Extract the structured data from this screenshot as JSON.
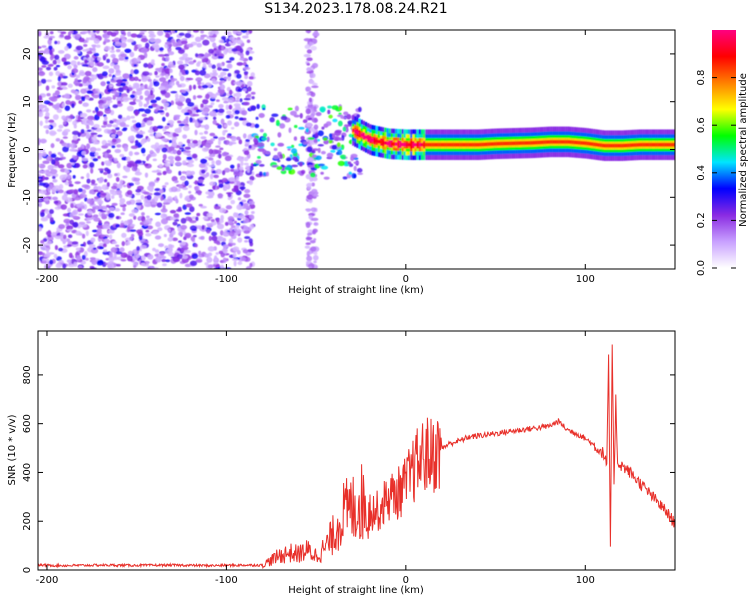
{
  "title": "S134.2023.178.08.24.R21",
  "chart_data": [
    {
      "type": "heatmap",
      "xlabel": "Height of straight line (km)",
      "ylabel": "Frequency (Hz)",
      "xlim": [
        -205,
        150
      ],
      "ylim": [
        -25,
        25
      ],
      "xticks": [
        -200,
        -100,
        0,
        100
      ],
      "yticks": [
        -20,
        -10,
        0,
        10,
        20
      ],
      "colorbar": {
        "label": "Normalized spectral amplitude",
        "range": [
          0,
          1
        ],
        "ticks": [
          0.0,
          0.2,
          0.4,
          0.6,
          0.8
        ],
        "colors": [
          "#ffffff",
          "#c8a0ff",
          "#8a2be2",
          "#0000ff",
          "#00e5ff",
          "#00ff00",
          "#ffff00",
          "#ff8000",
          "#ff0000",
          "#ff0080"
        ]
      },
      "regions": [
        {
          "x": [
            -205,
            -85
          ],
          "freq": [
            -25,
            25
          ],
          "amplitude": 0.15,
          "pattern": "scattered noise"
        },
        {
          "x": [
            -55,
            -50
          ],
          "freq": [
            -25,
            25
          ],
          "amplitude": 0.1,
          "pattern": "vertical streak"
        },
        {
          "x": [
            -85,
            -25
          ],
          "freq": [
            -6,
            9
          ],
          "amplitude": 0.3,
          "pattern": "blobs"
        },
        {
          "x": [
            -25,
            150
          ],
          "freq": [
            -1,
            3
          ],
          "amplitude": 0.85,
          "pattern": "signal band near 1 Hz"
        }
      ],
      "signal_band": {
        "x": [
          -30,
          -20,
          -10,
          0,
          10,
          20,
          30,
          40,
          50,
          60,
          70,
          80,
          90,
          100,
          110,
          120,
          130,
          140,
          150
        ],
        "freq": [
          4,
          2,
          1.2,
          1,
          1,
          1,
          1,
          1,
          1.2,
          1.3,
          1.4,
          1.6,
          1.6,
          1.3,
          0.8,
          0.8,
          1,
          1,
          1
        ]
      }
    },
    {
      "type": "line",
      "xlabel": "Height of straight line (km)",
      "ylabel": "SNR (10 * v/v)",
      "xlim": [
        -205,
        150
      ],
      "ylim": [
        0,
        980
      ],
      "xticks": [
        -200,
        -100,
        0,
        100
      ],
      "yticks": [
        0,
        200,
        400,
        600,
        800
      ],
      "color": "#e8302a",
      "x": [
        -205,
        -190,
        -170,
        -150,
        -130,
        -110,
        -90,
        -80,
        -75,
        -70,
        -65,
        -60,
        -55,
        -50,
        -45,
        -40,
        -35,
        -30,
        -25,
        -20,
        -15,
        -10,
        -5,
        0,
        5,
        10,
        15,
        20,
        25,
        30,
        35,
        40,
        50,
        60,
        70,
        80,
        85,
        90,
        95,
        100,
        105,
        108,
        110,
        112,
        113,
        114,
        115,
        116,
        117,
        118,
        120,
        125,
        130,
        135,
        140,
        145,
        150
      ],
      "y": [
        20,
        18,
        20,
        19,
        20,
        18,
        20,
        20,
        40,
        60,
        70,
        65,
        80,
        60,
        90,
        150,
        230,
        250,
        280,
        250,
        240,
        300,
        310,
        350,
        420,
        470,
        470,
        500,
        520,
        530,
        545,
        550,
        560,
        570,
        580,
        590,
        610,
        575,
        560,
        540,
        510,
        490,
        480,
        430,
        860,
        100,
        900,
        350,
        700,
        440,
        430,
        400,
        360,
        320,
        280,
        240,
        190
      ]
    }
  ]
}
